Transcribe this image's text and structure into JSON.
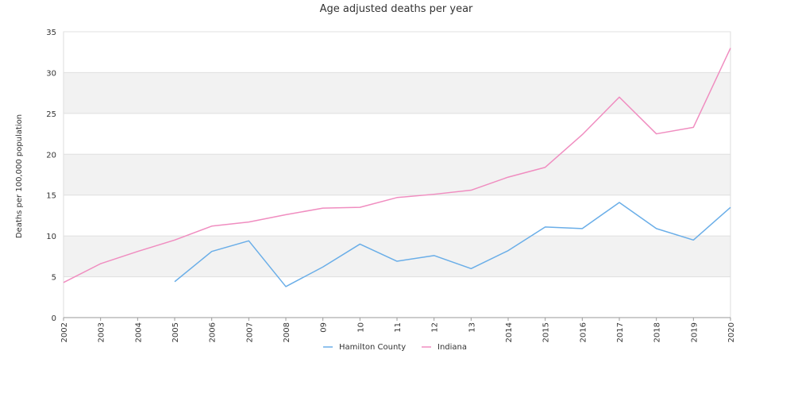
{
  "chart_data": {
    "type": "line",
    "title": "Age adjusted deaths per year",
    "xlabel": "",
    "ylabel": "Deaths per 100,000 population",
    "ylim": [
      0,
      35
    ],
    "yticks": [
      0,
      5,
      10,
      15,
      20,
      25,
      30,
      35
    ],
    "categories": [
      "2002",
      "2003",
      "2004",
      "2005",
      "2006",
      "2007",
      "2008",
      "09",
      "10",
      "11",
      "12",
      "13",
      "2014",
      "2015",
      "2016",
      "2017",
      "2018",
      "2019",
      "2020"
    ],
    "grid": true,
    "legend_position": "bottom",
    "series": [
      {
        "name": "Hamilton County",
        "color": "#6aaee8",
        "values": [
          null,
          null,
          null,
          4.4,
          8.1,
          9.4,
          3.8,
          6.2,
          9.0,
          6.9,
          7.6,
          6.0,
          8.2,
          11.1,
          10.9,
          14.1,
          10.9,
          9.5,
          13.5
        ]
      },
      {
        "name": "Indiana",
        "color": "#f08dc0",
        "values": [
          4.3,
          6.6,
          8.1,
          9.5,
          11.2,
          11.7,
          12.6,
          13.4,
          13.5,
          14.7,
          15.1,
          15.6,
          17.2,
          18.4,
          22.4,
          27.0,
          22.5,
          23.3,
          33.0
        ]
      }
    ]
  }
}
